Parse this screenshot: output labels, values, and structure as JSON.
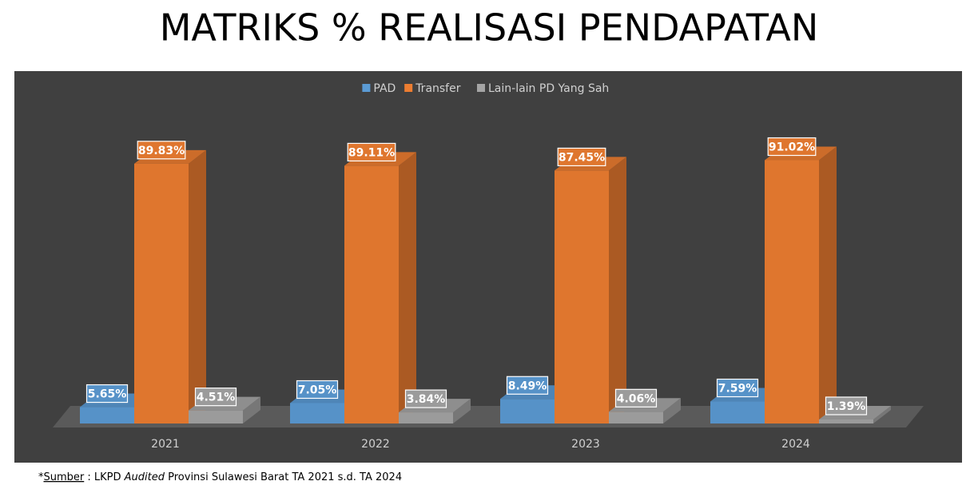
{
  "chart_data": {
    "type": "bar3d",
    "title": "MATRIKS % REALISASI PENDAPATAN",
    "categories": [
      "2021",
      "2022",
      "2023",
      "2024"
    ],
    "series": [
      {
        "name": "PAD",
        "color": "#5b9bd5",
        "values": [
          5.65,
          7.05,
          8.49,
          7.59
        ],
        "value_labels": [
          "5.65%",
          "7.05%",
          "8.49%",
          "7.59%"
        ]
      },
      {
        "name": "Transfer",
        "color": "#ed7d31",
        "values": [
          89.83,
          89.11,
          87.45,
          91.02
        ],
        "value_labels": [
          "89.83%",
          "89.11%",
          "87.45%",
          "91.02%"
        ]
      },
      {
        "name": "Lain-lain PD Yang Sah",
        "color": "#a5a5a5",
        "values": [
          4.51,
          3.84,
          4.06,
          1.39
        ],
        "value_labels": [
          "4.51%",
          "3.84%",
          "4.06%",
          "1.39%"
        ]
      }
    ],
    "ylim": [
      0,
      100
    ],
    "legend": "top",
    "footnote": {
      "mark": "*",
      "source": "Sumber",
      "middle": " : LKPD ",
      "emphasis": "Audited",
      "rest": " Provinsi Sulawesi Barat TA 2021 s.d. TA 2024"
    }
  }
}
